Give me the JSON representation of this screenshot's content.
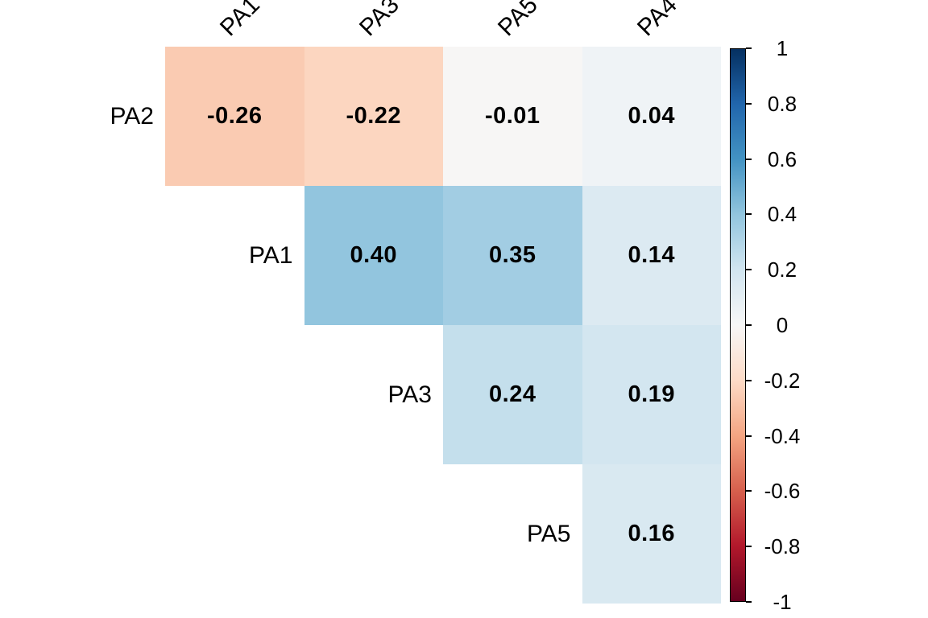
{
  "figure": {
    "background": "#ffffff",
    "text_color": "#000000"
  },
  "chart_data": {
    "type": "heatmap",
    "subtype": "correlation-matrix-upper-triangle",
    "title": "",
    "column_labels": [
      "PA1",
      "PA3",
      "PA5",
      "PA4"
    ],
    "row_labels": [
      "PA2",
      "PA1",
      "PA3",
      "PA5"
    ],
    "cells": [
      {
        "row": 0,
        "col": 0,
        "row_label": "PA2",
        "col_label": "PA1",
        "value": -0.26,
        "display": "-0.26"
      },
      {
        "row": 0,
        "col": 1,
        "row_label": "PA2",
        "col_label": "PA3",
        "value": -0.22,
        "display": "-0.22"
      },
      {
        "row": 0,
        "col": 2,
        "row_label": "PA2",
        "col_label": "PA5",
        "value": -0.01,
        "display": "-0.01"
      },
      {
        "row": 0,
        "col": 3,
        "row_label": "PA2",
        "col_label": "PA4",
        "value": 0.04,
        "display": "0.04"
      },
      {
        "row": 1,
        "col": 1,
        "row_label": "PA1",
        "col_label": "PA3",
        "value": 0.4,
        "display": "0.40"
      },
      {
        "row": 1,
        "col": 2,
        "row_label": "PA1",
        "col_label": "PA5",
        "value": 0.35,
        "display": "0.35"
      },
      {
        "row": 1,
        "col": 3,
        "row_label": "PA1",
        "col_label": "PA4",
        "value": 0.14,
        "display": "0.14"
      },
      {
        "row": 2,
        "col": 2,
        "row_label": "PA3",
        "col_label": "PA5",
        "value": 0.24,
        "display": "0.24"
      },
      {
        "row": 2,
        "col": 3,
        "row_label": "PA3",
        "col_label": "PA4",
        "value": 0.19,
        "display": "0.19"
      },
      {
        "row": 3,
        "col": 3,
        "row_label": "PA5",
        "col_label": "PA4",
        "value": 0.16,
        "display": "0.16"
      }
    ],
    "value_text_color": "#000000",
    "colorbar": {
      "min": -1,
      "max": 1,
      "ticks": [
        {
          "value": 1,
          "label": "1"
        },
        {
          "value": 0.8,
          "label": "0.8"
        },
        {
          "value": 0.6,
          "label": "0.6"
        },
        {
          "value": 0.4,
          "label": "0.4"
        },
        {
          "value": 0.2,
          "label": "0.2"
        },
        {
          "value": 0,
          "label": "0"
        },
        {
          "value": -0.2,
          "label": "-0.2"
        },
        {
          "value": -0.4,
          "label": "-0.4"
        },
        {
          "value": -0.6,
          "label": "-0.6"
        },
        {
          "value": -0.8,
          "label": "-0.8"
        },
        {
          "value": -1,
          "label": "-1"
        }
      ]
    },
    "colormap": {
      "name": "RdBu",
      "stops": [
        {
          "value": -1.0,
          "color": "#67001F"
        },
        {
          "value": -0.8,
          "color": "#B2182B"
        },
        {
          "value": -0.6,
          "color": "#D6604D"
        },
        {
          "value": -0.4,
          "color": "#F4A582"
        },
        {
          "value": -0.2,
          "color": "#FDDBC7"
        },
        {
          "value": 0.0,
          "color": "#F7F7F7"
        },
        {
          "value": 0.2,
          "color": "#D1E5F0"
        },
        {
          "value": 0.4,
          "color": "#92C5DE"
        },
        {
          "value": 0.6,
          "color": "#4393C3"
        },
        {
          "value": 0.8,
          "color": "#2166AC"
        },
        {
          "value": 1.0,
          "color": "#053061"
        }
      ]
    }
  }
}
